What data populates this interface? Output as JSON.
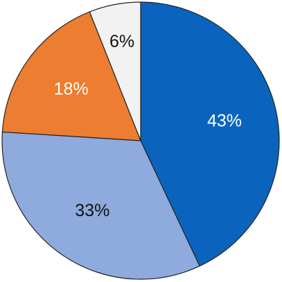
{
  "chart_data": {
    "type": "pie",
    "categories": [
      null,
      null,
      null,
      null
    ],
    "values": [
      43,
      33,
      18,
      6
    ],
    "value_labels": [
      "43%",
      "33%",
      "18%",
      "6%"
    ],
    "colors": [
      "#0a64bd",
      "#8faadc",
      "#ed7d31",
      "#f2f2f2"
    ]
  }
}
